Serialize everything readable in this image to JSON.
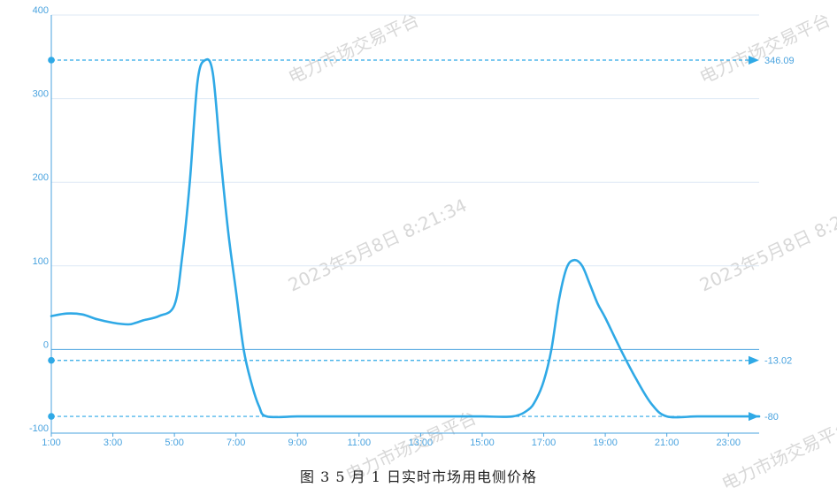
{
  "caption": "图 3   5 月 1 日实时市场用电侧价格",
  "watermarks": [
    "电力市场交易平台",
    "2023年5月8日 8:21:34"
  ],
  "colors": {
    "line": "#2fa9e6",
    "axis": "#4aa3df",
    "grid": "#dde9f5"
  },
  "chart_data": {
    "type": "line",
    "title": "",
    "xlabel": "",
    "ylabel": "",
    "x_ticks": [
      "1:00",
      "3:00",
      "5:00",
      "7:00",
      "9:00",
      "11:00",
      "13:00",
      "15:00",
      "17:00",
      "19:00",
      "21:00",
      "23:00"
    ],
    "y_ticks": [
      400,
      300,
      200,
      100,
      0,
      -100
    ],
    "xlim": [
      1,
      24
    ],
    "ylim": [
      -100,
      400
    ],
    "grid": true,
    "series": [
      {
        "x": [
          1.0,
          1.5,
          2.0,
          2.5,
          3.0,
          3.5,
          3.75,
          4.0,
          4.5,
          5.0,
          5.25,
          5.5,
          5.75,
          6.0,
          6.25,
          6.5,
          6.75,
          7.0,
          7.25,
          7.5,
          7.75,
          8.0,
          9.0,
          10.0,
          11.0,
          12.0,
          13.0,
          14.0,
          15.0,
          16.0,
          16.5,
          16.75,
          17.0,
          17.25,
          17.5,
          17.75,
          18.0,
          18.25,
          18.5,
          18.75,
          19.0,
          19.5,
          20.0,
          20.5,
          21.0,
          22.0,
          23.0,
          24.0
        ],
        "y": [
          40,
          43,
          42,
          36,
          32,
          30,
          32,
          35,
          40,
          53,
          110,
          200,
          320,
          346.09,
          330,
          230,
          140,
          70,
          0,
          -40,
          -68,
          -80,
          -80,
          -80,
          -80,
          -80,
          -80,
          -80,
          -80,
          -80,
          -72,
          -60,
          -38,
          0,
          60,
          98,
          107,
          100,
          78,
          55,
          38,
          0,
          -35,
          -65,
          -80,
          -80,
          -80,
          -80
        ]
      }
    ],
    "mark_lines": [
      {
        "label": "346.09",
        "value": 346.09
      },
      {
        "label": "-13.02",
        "value": -13.02
      },
      {
        "label": "-80",
        "value": -80
      }
    ]
  }
}
